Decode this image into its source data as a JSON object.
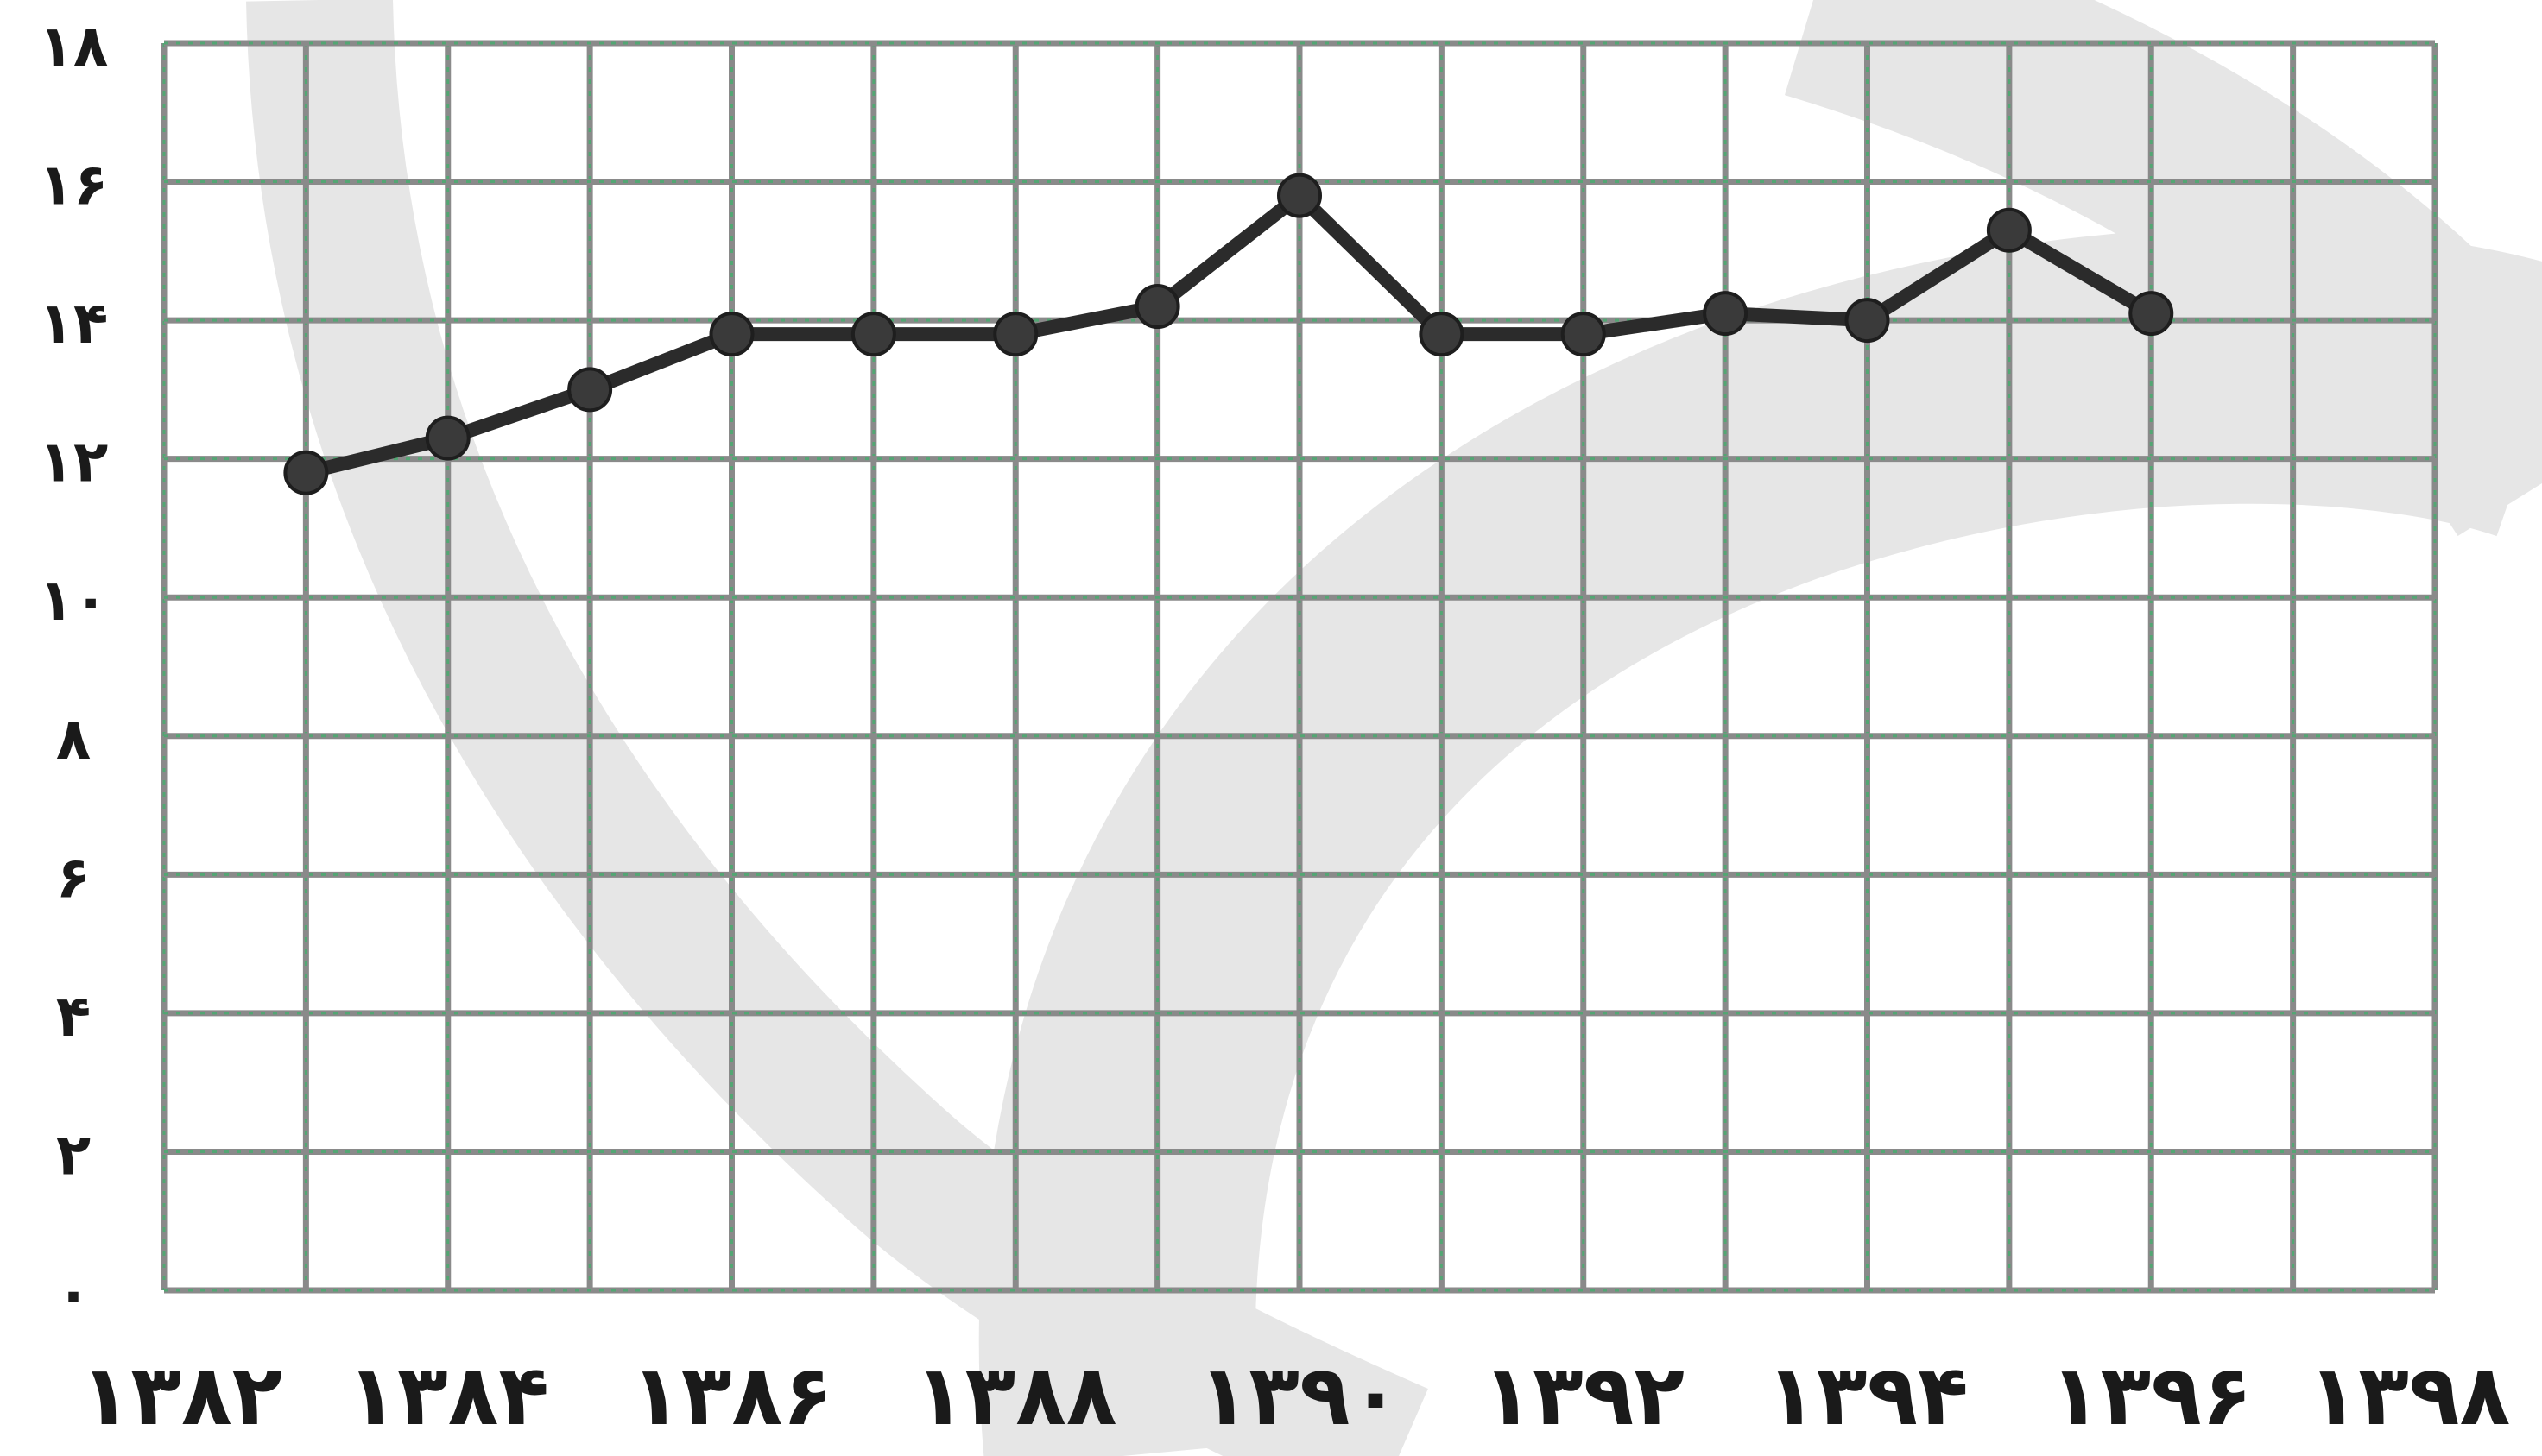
{
  "chart_data": {
    "type": "line",
    "title": "",
    "xlabel": "",
    "ylabel": "",
    "x": [
      1383,
      1384,
      1385,
      1386,
      1387,
      1388,
      1389,
      1390,
      1391,
      1392,
      1393,
      1394,
      1395,
      1396
    ],
    "series": [
      {
        "values": [
          11.8,
          12.3,
          13.0,
          13.8,
          13.8,
          13.8,
          14.2,
          15.8,
          13.8,
          13.8,
          14.1,
          14.0,
          15.3,
          14.1
        ]
      }
    ],
    "xlim": [
      1382,
      1398
    ],
    "ylim": [
      0,
      18
    ],
    "x_tick_values": [
      1382,
      1384,
      1386,
      1388,
      1390,
      1392,
      1394,
      1396,
      1398
    ],
    "x_tick_labels": [
      "۱۳۸۲",
      "۱۳۸۴",
      "۱۳۸۶",
      "۱۳۸۸",
      "۱۳۹۰",
      "۱۳۹۲",
      "۱۳۹۴",
      "۱۳۹۶",
      "۱۳۹۸"
    ],
    "y_tick_values": [
      0,
      2,
      4,
      6,
      8,
      10,
      12,
      14,
      16,
      18
    ],
    "y_tick_labels": [
      "۰",
      "۲",
      "۴",
      "۶",
      "۸",
      "۱۰",
      "۱۲",
      "۱۴",
      "۱۶",
      "۱۸"
    ],
    "grid": true,
    "legend": "none",
    "colors": {
      "line": "#2b2b2b",
      "marker": "#3a3a3a",
      "grid": "#8a8a8a",
      "grid_dotted": "#3db36a",
      "watermark": "#e6e6e6"
    }
  }
}
